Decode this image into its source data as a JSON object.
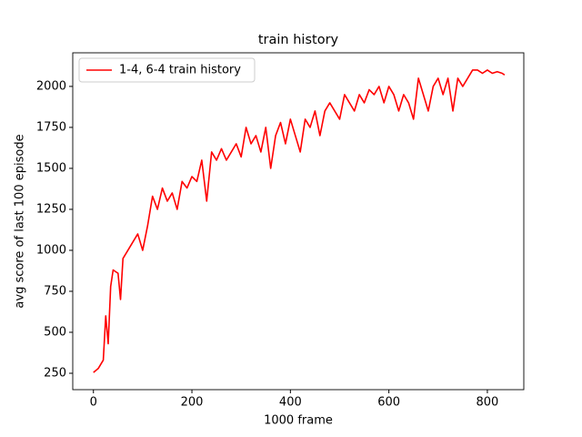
{
  "chart_data": {
    "type": "line",
    "title": "train history",
    "xlabel": "1000 frame",
    "ylabel": "avg score of last 100 episode",
    "x": [
      0,
      10,
      20,
      25,
      30,
      35,
      40,
      50,
      55,
      60,
      70,
      80,
      90,
      100,
      110,
      120,
      130,
      140,
      150,
      160,
      170,
      180,
      190,
      200,
      210,
      220,
      230,
      240,
      250,
      260,
      270,
      280,
      290,
      300,
      310,
      320,
      330,
      340,
      350,
      360,
      370,
      380,
      390,
      400,
      410,
      420,
      430,
      440,
      450,
      460,
      470,
      480,
      490,
      500,
      510,
      520,
      530,
      540,
      550,
      560,
      570,
      580,
      590,
      600,
      610,
      620,
      630,
      640,
      650,
      660,
      670,
      680,
      690,
      700,
      710,
      720,
      730,
      740,
      750,
      760,
      770,
      780,
      790,
      800,
      810,
      820,
      830,
      835
    ],
    "series": [
      {
        "name": "1-4, 6-4 train history",
        "color": "#ff0000",
        "values": [
          255,
          280,
          330,
          600,
          430,
          780,
          880,
          860,
          700,
          950,
          1000,
          1050,
          1100,
          1000,
          1150,
          1330,
          1250,
          1380,
          1300,
          1350,
          1250,
          1420,
          1380,
          1450,
          1420,
          1550,
          1300,
          1600,
          1550,
          1620,
          1550,
          1600,
          1650,
          1570,
          1750,
          1650,
          1700,
          1600,
          1750,
          1500,
          1700,
          1780,
          1650,
          1800,
          1700,
          1600,
          1800,
          1750,
          1850,
          1700,
          1850,
          1900,
          1850,
          1800,
          1950,
          1900,
          1850,
          1950,
          1900,
          1980,
          1950,
          2000,
          1900,
          2000,
          1950,
          1850,
          1950,
          1900,
          1800,
          2050,
          1950,
          1850,
          2000,
          2050,
          1950,
          2050,
          1850,
          2050,
          2000,
          2050,
          2100,
          2100,
          2080,
          2100,
          2080,
          2090,
          2080,
          2070
        ]
      }
    ],
    "xlim": [
      -42,
      874
    ],
    "ylim": [
      150,
      2205
    ],
    "xticks": [
      0,
      200,
      400,
      600,
      800
    ],
    "yticks": [
      250,
      500,
      750,
      1000,
      1250,
      1500,
      1750,
      2000
    ],
    "legend": "upper left"
  }
}
